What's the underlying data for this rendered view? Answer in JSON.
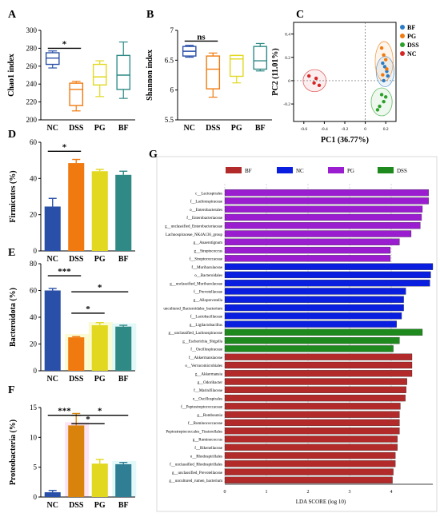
{
  "chart_data": [
    {
      "panel": "A",
      "type": "box",
      "ylabel": "Chao1 index",
      "categories": [
        "NC",
        "DSS",
        "PG",
        "BF"
      ],
      "ylim": [
        200,
        300
      ],
      "yticks": [
        200,
        220,
        240,
        260,
        280,
        300
      ],
      "boxes": [
        {
          "min": 258,
          "q1": 262,
          "median": 269,
          "q3": 275,
          "max": 277
        },
        {
          "min": 210,
          "q1": 216,
          "median": 234,
          "q3": 241,
          "max": 243
        },
        {
          "min": 226,
          "q1": 239,
          "median": 248,
          "q3": 262,
          "max": 266
        },
        {
          "min": 224,
          "q1": 234,
          "median": 250,
          "q3": 272,
          "max": 287
        }
      ],
      "colors": [
        "#2a4fa8",
        "#f07a10",
        "#e1d81f",
        "#2f8a86"
      ],
      "annotations": [
        {
          "from": 0,
          "to": 1,
          "text": "*"
        }
      ]
    },
    {
      "panel": "B",
      "type": "box",
      "ylabel": "Shannon index",
      "categories": [
        "NC",
        "DSS",
        "PG",
        "BF"
      ],
      "ylim": [
        5.5,
        7.0
      ],
      "yticks": [
        5.5,
        6.0,
        6.5,
        7.0
      ],
      "boxes": [
        {
          "min": 6.55,
          "q1": 6.57,
          "median": 6.65,
          "q3": 6.73,
          "max": 6.75
        },
        {
          "min": 5.88,
          "q1": 6.02,
          "median": 6.35,
          "q3": 6.57,
          "max": 6.62
        },
        {
          "min": 6.12,
          "q1": 6.23,
          "median": 6.52,
          "q3": 6.58,
          "max": 6.58
        },
        {
          "min": 6.32,
          "q1": 6.35,
          "median": 6.49,
          "q3": 6.73,
          "max": 6.78
        }
      ],
      "colors": [
        "#2a4fa8",
        "#f07a10",
        "#e1d81f",
        "#2f8a86"
      ],
      "annotations": [
        {
          "from": 0,
          "to": 1,
          "text": "ns"
        }
      ]
    },
    {
      "panel": "C",
      "type": "scatter",
      "xlabel": "PC1 (36.77%)",
      "ylabel": "PC2 (11.01%)",
      "xlim": [
        -0.7,
        0.3
      ],
      "ylim": [
        -0.35,
        0.5
      ],
      "xticks": [
        -0.6,
        -0.4,
        -0.2,
        0,
        0.2
      ],
      "yticks": [
        -0.2,
        0,
        0.2,
        0.4
      ],
      "series": [
        {
          "name": "BF",
          "color": "#2b7bc4",
          "points": [
            [
              0.19,
              0.12
            ],
            [
              0.21,
              0.08
            ],
            [
              0.17,
              0.15
            ],
            [
              0.22,
              0.04
            ],
            [
              0.18,
              0.0
            ]
          ]
        },
        {
          "name": "PG",
          "color": "#f07a10",
          "points": [
            [
              0.18,
              0.22
            ],
            [
              0.2,
              0.18
            ],
            [
              0.16,
              0.28
            ],
            [
              0.21,
              0.1
            ],
            [
              0.17,
              0.05
            ]
          ]
        },
        {
          "name": "DSS",
          "color": "#2aa02a",
          "points": [
            [
              0.14,
              -0.22
            ],
            [
              0.18,
              -0.18
            ],
            [
              0.12,
              -0.25
            ],
            [
              0.2,
              -0.14
            ],
            [
              0.16,
              -0.12
            ]
          ]
        },
        {
          "name": "NC",
          "color": "#d62728",
          "points": [
            [
              -0.55,
              0.04
            ],
            [
              -0.48,
              0.02
            ],
            [
              -0.45,
              -0.04
            ],
            [
              -0.5,
              -0.02
            ]
          ]
        }
      ]
    },
    {
      "panel": "D",
      "type": "bar",
      "ylabel": "Firmicutes (%)",
      "categories": [
        "NC",
        "DSS",
        "PG",
        "BF"
      ],
      "values": [
        24.5,
        48.5,
        44.0,
        42.0
      ],
      "errors": [
        4.5,
        2.0,
        1.0,
        2.0
      ],
      "ylim": [
        0,
        60
      ],
      "yticks": [
        0,
        20,
        40,
        60
      ],
      "colors": [
        "#2a4fa8",
        "#f07a10",
        "#e1d81f",
        "#2f8a86"
      ],
      "annotations": [
        {
          "from": 0,
          "to": 1,
          "text": "*"
        }
      ]
    },
    {
      "panel": "E",
      "type": "bar",
      "ylabel": "Bacteroidota (%)",
      "categories": [
        "NC",
        "DSS",
        "PG",
        "BF"
      ],
      "values": [
        60.0,
        25.0,
        34.0,
        33.0
      ],
      "errors": [
        1.5,
        0.5,
        2.0,
        1.0
      ],
      "ylim": [
        0,
        80
      ],
      "yticks": [
        0,
        20,
        40,
        60,
        80
      ],
      "colors": [
        "#2a4fa8",
        "#f07a10",
        "#e1d81f",
        "#2f8a86"
      ],
      "annotations": [
        {
          "from": 0,
          "to": 1,
          "text": "***"
        },
        {
          "from": 1,
          "to": 3,
          "text": "*"
        },
        {
          "from": 1,
          "to": 2,
          "text": "*"
        }
      ]
    },
    {
      "panel": "F",
      "type": "bar",
      "ylabel": "Proteobacteria (%)",
      "categories": [
        "NC",
        "DSS",
        "PG",
        "BF"
      ],
      "values": [
        0.8,
        12.0,
        5.6,
        5.5
      ],
      "errors": [
        0.3,
        2.0,
        0.7,
        0.3
      ],
      "ylim": [
        0,
        15
      ],
      "yticks": [
        0,
        5,
        10,
        15
      ],
      "colors": [
        "#2a4fa8",
        "#d9830c",
        "#e1d81f",
        "#2f7e94"
      ],
      "annotations": [
        {
          "from": 0,
          "to": 1,
          "text": "***"
        },
        {
          "from": 1,
          "to": 2,
          "text": "*"
        },
        {
          "from": 1,
          "to": 3,
          "text": "*"
        }
      ]
    },
    {
      "panel": "G",
      "type": "bar",
      "orientation": "horizontal",
      "xlabel": "LDA SCORE (log 10)",
      "xlim": [
        0,
        5
      ],
      "xticks": [
        0,
        1,
        2,
        3,
        4
      ],
      "legend": [
        {
          "name": "BF",
          "color": "#b22a2a"
        },
        {
          "name": "NC",
          "color": "#0a1ee0"
        },
        {
          "name": "PG",
          "color": "#9a1ed0"
        },
        {
          "name": "DSS",
          "color": "#1e8a1e"
        }
      ],
      "bars": [
        {
          "label": "c__Lactospirales",
          "value": 4.9,
          "group": "PG"
        },
        {
          "label": "f__Lachnospiraceae",
          "value": 4.9,
          "group": "PG"
        },
        {
          "label": "o__Enterobacterales",
          "value": 4.75,
          "group": "PG"
        },
        {
          "label": "f__Enterobacteriaceae",
          "value": 4.73,
          "group": "PG"
        },
        {
          "label": "g__unclassified_Enterobacteriaceae",
          "value": 4.7,
          "group": "PG"
        },
        {
          "label": "Lachnospiraceae_NK4A136_group",
          "value": 4.48,
          "group": "PG"
        },
        {
          "label": "g__Anaerotignum",
          "value": 4.2,
          "group": "PG"
        },
        {
          "label": "g__Streptococcus",
          "value": 3.98,
          "group": "PG"
        },
        {
          "label": "f__Streptococcaceae",
          "value": 3.98,
          "group": "PG"
        },
        {
          "label": "f__Muribaculaceae",
          "value": 5.0,
          "group": "NC"
        },
        {
          "label": "o__Bacteroidales",
          "value": 4.95,
          "group": "NC"
        },
        {
          "label": "g__unclassified_Muribaculaceae",
          "value": 4.93,
          "group": "NC"
        },
        {
          "label": "f__Prevotellaceae",
          "value": 4.35,
          "group": "NC"
        },
        {
          "label": "g__Alloprevotella",
          "value": 4.3,
          "group": "NC"
        },
        {
          "label": "uncultured_Bacteroidales_bacterium",
          "value": 4.3,
          "group": "NC"
        },
        {
          "label": "f__Lactobacillaceae",
          "value": 4.25,
          "group": "NC"
        },
        {
          "label": "g__Ligilactobacillus",
          "value": 4.13,
          "group": "NC"
        },
        {
          "label": "g__unclassified_Lachnospiraceae",
          "value": 4.75,
          "group": "DSS"
        },
        {
          "label": "g__Escherichia_Shigella",
          "value": 4.2,
          "group": "DSS"
        },
        {
          "label": "f__Oscillospiraceae",
          "value": 4.05,
          "group": "DSS"
        },
        {
          "label": "f__Akkermansiaceae",
          "value": 4.5,
          "group": "BF"
        },
        {
          "label": "o__Verrucomicrobiales",
          "value": 4.5,
          "group": "BF"
        },
        {
          "label": "g__Akkermansia",
          "value": 4.5,
          "group": "BF"
        },
        {
          "label": "g__Odoribacter",
          "value": 4.38,
          "group": "BF"
        },
        {
          "label": "f__Marinifilaceae",
          "value": 4.36,
          "group": "BF"
        },
        {
          "label": "o__Oscillospirales",
          "value": 4.34,
          "group": "BF"
        },
        {
          "label": "f__Peptostreptococcaceae",
          "value": 4.22,
          "group": "BF"
        },
        {
          "label": "g__Romboutsia",
          "value": 4.2,
          "group": "BF"
        },
        {
          "label": "f__Ruminococcaceae",
          "value": 4.2,
          "group": "BF"
        },
        {
          "label": "Peptostreptococcales_Tissierellales",
          "value": 4.2,
          "group": "BF"
        },
        {
          "label": "g__Ruminococcus",
          "value": 4.15,
          "group": "BF"
        },
        {
          "label": "f__Rikenellaceae",
          "value": 4.15,
          "group": "BF"
        },
        {
          "label": "o__Rhodospirillales",
          "value": 4.1,
          "group": "BF"
        },
        {
          "label": "f__unclassified_Rhodospirillales",
          "value": 4.1,
          "group": "BF"
        },
        {
          "label": "g__unclassified_Prevotellaceae",
          "value": 4.05,
          "group": "BF"
        },
        {
          "label": "g__uncultured_rumen_bacterium",
          "value": 4.03,
          "group": "BF"
        }
      ]
    }
  ]
}
